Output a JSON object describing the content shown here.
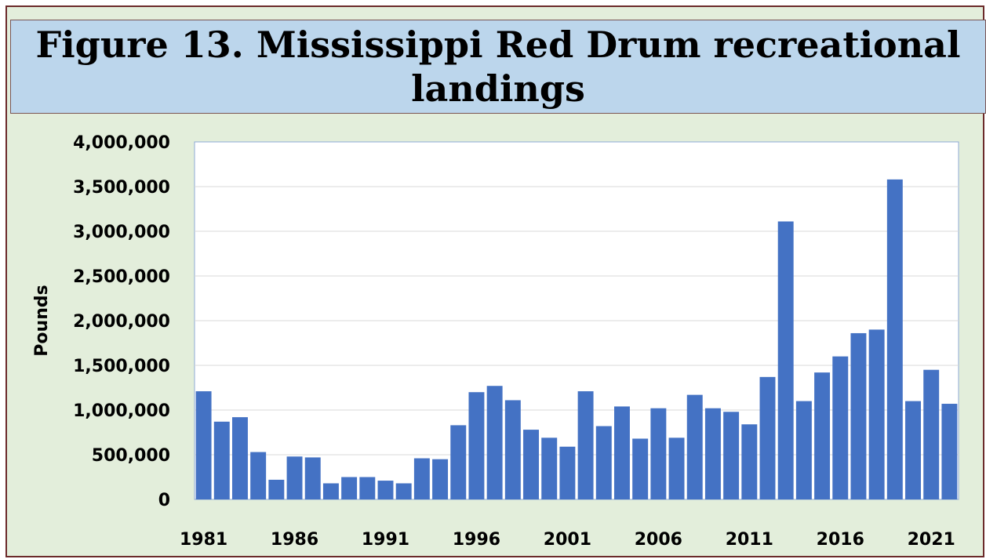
{
  "header": {
    "title": "Figure 13. Mississippi Red Drum recreational landings"
  },
  "colors": {
    "frame_border": "#6b2a2a",
    "background": "#e3eedb",
    "title_background": "#bcd6ec",
    "plot_background": "#ffffff",
    "bar": "#4472c4",
    "gridline": "#d9d9d9"
  },
  "chart_data": {
    "type": "bar",
    "title": "Figure 13. Mississippi Red Drum recreational landings",
    "xlabel": "",
    "ylabel": "Pounds",
    "ylim": [
      0,
      4000000
    ],
    "yticks": [
      0,
      500000,
      1000000,
      1500000,
      2000000,
      2500000,
      3000000,
      3500000,
      4000000
    ],
    "ytick_labels": [
      "0",
      "500,000",
      "1,000,000",
      "1,500,000",
      "2,000,000",
      "2,500,000",
      "3,000,000",
      "3,500,000",
      "4,000,000"
    ],
    "xtick_labels": [
      "1981",
      "1986",
      "1991",
      "1996",
      "2001",
      "2006",
      "2011",
      "2016",
      "2021"
    ],
    "grid": true,
    "legend": "none",
    "categories": [
      "1981",
      "1982",
      "1983",
      "1984",
      "1985",
      "1986",
      "1987",
      "1988",
      "1989",
      "1990",
      "1991",
      "1992",
      "1993",
      "1994",
      "1995",
      "1996",
      "1997",
      "1998",
      "1999",
      "2000",
      "2001",
      "2002",
      "2003",
      "2004",
      "2005",
      "2006",
      "2007",
      "2008",
      "2009",
      "2010",
      "2011",
      "2012",
      "2013",
      "2014",
      "2015",
      "2016",
      "2017",
      "2018",
      "2019",
      "2020",
      "2021",
      "2022"
    ],
    "values": [
      1210000,
      870000,
      920000,
      530000,
      220000,
      480000,
      470000,
      180000,
      250000,
      250000,
      210000,
      180000,
      460000,
      450000,
      830000,
      1200000,
      1270000,
      1110000,
      780000,
      690000,
      590000,
      1210000,
      820000,
      1040000,
      680000,
      1020000,
      690000,
      1170000,
      1020000,
      980000,
      840000,
      1370000,
      3110000,
      1100000,
      1420000,
      1600000,
      1860000,
      1900000,
      3580000,
      1100000,
      1450000,
      1070000
    ]
  }
}
